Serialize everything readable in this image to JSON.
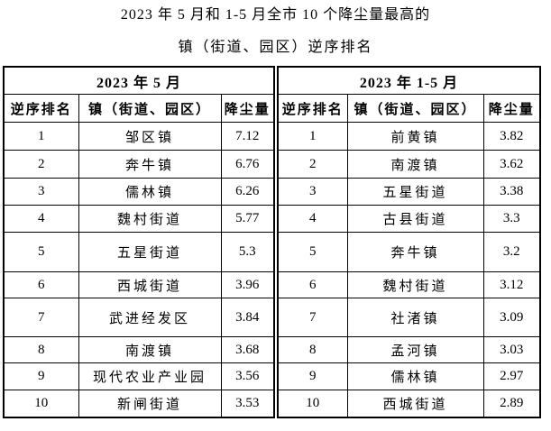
{
  "title": {
    "line1": "2023 年 5 月和 1-5 月全市 10 个降尘量最高的",
    "line2": "镇（街道、园区）逆序排名"
  },
  "tables": [
    {
      "period": "2023 年 5 月",
      "columns": [
        "逆序排名",
        "镇（街道、园区）",
        "降尘量"
      ],
      "rows": [
        [
          "1",
          "邹区镇",
          "7.12"
        ],
        [
          "2",
          "奔牛镇",
          "6.76"
        ],
        [
          "3",
          "儒林镇",
          "6.26"
        ],
        [
          "4",
          "魏村街道",
          "5.77"
        ],
        [
          "5",
          "五星街道",
          "5.3"
        ],
        [
          "6",
          "西城街道",
          "3.96"
        ],
        [
          "7",
          "武进经发区",
          "3.84"
        ],
        [
          "8",
          "南渡镇",
          "3.68"
        ],
        [
          "9",
          "现代农业产业园",
          "3.56"
        ],
        [
          "10",
          "新闸街道",
          "3.53"
        ]
      ]
    },
    {
      "period": "2023 年 1-5 月",
      "columns": [
        "逆序排名",
        "镇（街道、园区）",
        "降尘量"
      ],
      "rows": [
        [
          "1",
          "前黄镇",
          "3.82"
        ],
        [
          "2",
          "南渡镇",
          "3.62"
        ],
        [
          "3",
          "五星街道",
          "3.38"
        ],
        [
          "4",
          "古县街道",
          "3.3"
        ],
        [
          "5",
          "奔牛镇",
          "3.2"
        ],
        [
          "6",
          "魏村街道",
          "3.12"
        ],
        [
          "7",
          "社渚镇",
          "3.09"
        ],
        [
          "8",
          "孟河镇",
          "3.03"
        ],
        [
          "9",
          "儒林镇",
          "2.97"
        ],
        [
          "10",
          "西城街道",
          "2.89"
        ]
      ]
    }
  ]
}
